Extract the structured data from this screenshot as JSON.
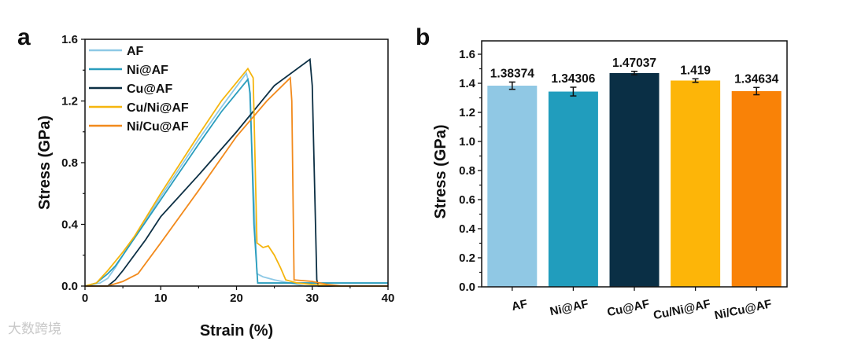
{
  "watermark": "大数跨境",
  "chart_data": [
    {
      "type": "line",
      "panel_label": "a",
      "xlabel": "Strain (%)",
      "ylabel": "Stress (GPa)",
      "xlim": [
        0,
        40
      ],
      "ylim": [
        0,
        1.6
      ],
      "xticks": [
        "0",
        "10",
        "20",
        "30",
        "40"
      ],
      "yticks": [
        "0.0",
        "0.4",
        "0.8",
        "1.2",
        "1.6"
      ],
      "legend": "top-left",
      "series": [
        {
          "name": "AF",
          "color": "#8ec9e6",
          "points": [
            [
              0,
              0
            ],
            [
              2,
              0.02
            ],
            [
              3,
              0.05
            ],
            [
              4,
              0.12
            ],
            [
              5,
              0.2
            ],
            [
              10,
              0.58
            ],
            [
              15,
              0.95
            ],
            [
              18,
              1.16
            ],
            [
              21.3,
              1.38
            ],
            [
              21.7,
              1.3
            ],
            [
              22.7,
              0.08
            ],
            [
              23.5,
              0.06
            ],
            [
              25,
              0.04
            ],
            [
              27,
              0.02
            ],
            [
              29,
              0.0
            ],
            [
              40,
              0.0
            ]
          ]
        },
        {
          "name": "Ni@AF",
          "color": "#2a9dbd",
          "points": [
            [
              0,
              0
            ],
            [
              1.5,
              0.02
            ],
            [
              3,
              0.08
            ],
            [
              4,
              0.13
            ],
            [
              5,
              0.2
            ],
            [
              10,
              0.56
            ],
            [
              15,
              0.92
            ],
            [
              18,
              1.13
            ],
            [
              21.5,
              1.34
            ],
            [
              21.8,
              1.25
            ],
            [
              22.3,
              0.4
            ],
            [
              22.8,
              0.02
            ],
            [
              40,
              0.02
            ]
          ]
        },
        {
          "name": "Cu@AF",
          "color": "#0c2f44",
          "points": [
            [
              0,
              0
            ],
            [
              3,
              0.0
            ],
            [
              4,
              0.04
            ],
            [
              5,
              0.1
            ],
            [
              8,
              0.3
            ],
            [
              10,
              0.45
            ],
            [
              15,
              0.72
            ],
            [
              20,
              1.0
            ],
            [
              25,
              1.3
            ],
            [
              29.7,
              1.47
            ],
            [
              30.0,
              1.3
            ],
            [
              30.6,
              0.04
            ],
            [
              30.8,
              0.0
            ],
            [
              40,
              0.0
            ]
          ]
        },
        {
          "name": "Cu/Ni@AF",
          "color": "#f5b50e",
          "points": [
            [
              0,
              0
            ],
            [
              1.5,
              0.02
            ],
            [
              3,
              0.1
            ],
            [
              5,
              0.22
            ],
            [
              6.5,
              0.32
            ],
            [
              10,
              0.6
            ],
            [
              15,
              0.98
            ],
            [
              18,
              1.2
            ],
            [
              21.5,
              1.41
            ],
            [
              22.2,
              1.35
            ],
            [
              22.7,
              0.28
            ],
            [
              23.5,
              0.25
            ],
            [
              24.2,
              0.26
            ],
            [
              25,
              0.2
            ],
            [
              25.8,
              0.12
            ],
            [
              26.5,
              0.04
            ],
            [
              28,
              0.02
            ],
            [
              30,
              0.01
            ],
            [
              33,
              0.0
            ],
            [
              40,
              0.0
            ]
          ]
        },
        {
          "name": "Ni/Cu@AF",
          "color": "#f28a1c",
          "points": [
            [
              0,
              0
            ],
            [
              3,
              0.0
            ],
            [
              5,
              0.03
            ],
            [
              7,
              0.08
            ],
            [
              10,
              0.28
            ],
            [
              15,
              0.62
            ],
            [
              20,
              0.97
            ],
            [
              24,
              1.2
            ],
            [
              27.1,
              1.35
            ],
            [
              27.3,
              1.2
            ],
            [
              27.6,
              0.04
            ],
            [
              30,
              0.03
            ],
            [
              32,
              0.01
            ],
            [
              34,
              0.0
            ],
            [
              40,
              0.0
            ]
          ]
        }
      ]
    },
    {
      "type": "bar",
      "panel_label": "b",
      "xlabel": "",
      "ylabel": "Stress (GPa)",
      "ylim": [
        0,
        1.65
      ],
      "yticks": [
        "0.0",
        "0.2",
        "0.4",
        "0.6",
        "0.8",
        "1.0",
        "1.2",
        "1.4",
        "1.6"
      ],
      "categories": [
        "AF",
        "Ni@AF",
        "Cu@AF",
        "Cu/Ni@AF",
        "Ni/Cu@AF"
      ],
      "values": [
        1.38374,
        1.34306,
        1.47037,
        1.419,
        1.34634
      ],
      "labels": [
        "1.38374",
        "1.34306",
        "1.47037",
        "1.419",
        "1.34634"
      ],
      "errors": [
        0.025,
        0.03,
        0.012,
        0.012,
        0.025
      ],
      "colors": [
        "#90c8e4",
        "#219dbd",
        "#0a2f45",
        "#fdb508",
        "#f98207"
      ]
    }
  ]
}
